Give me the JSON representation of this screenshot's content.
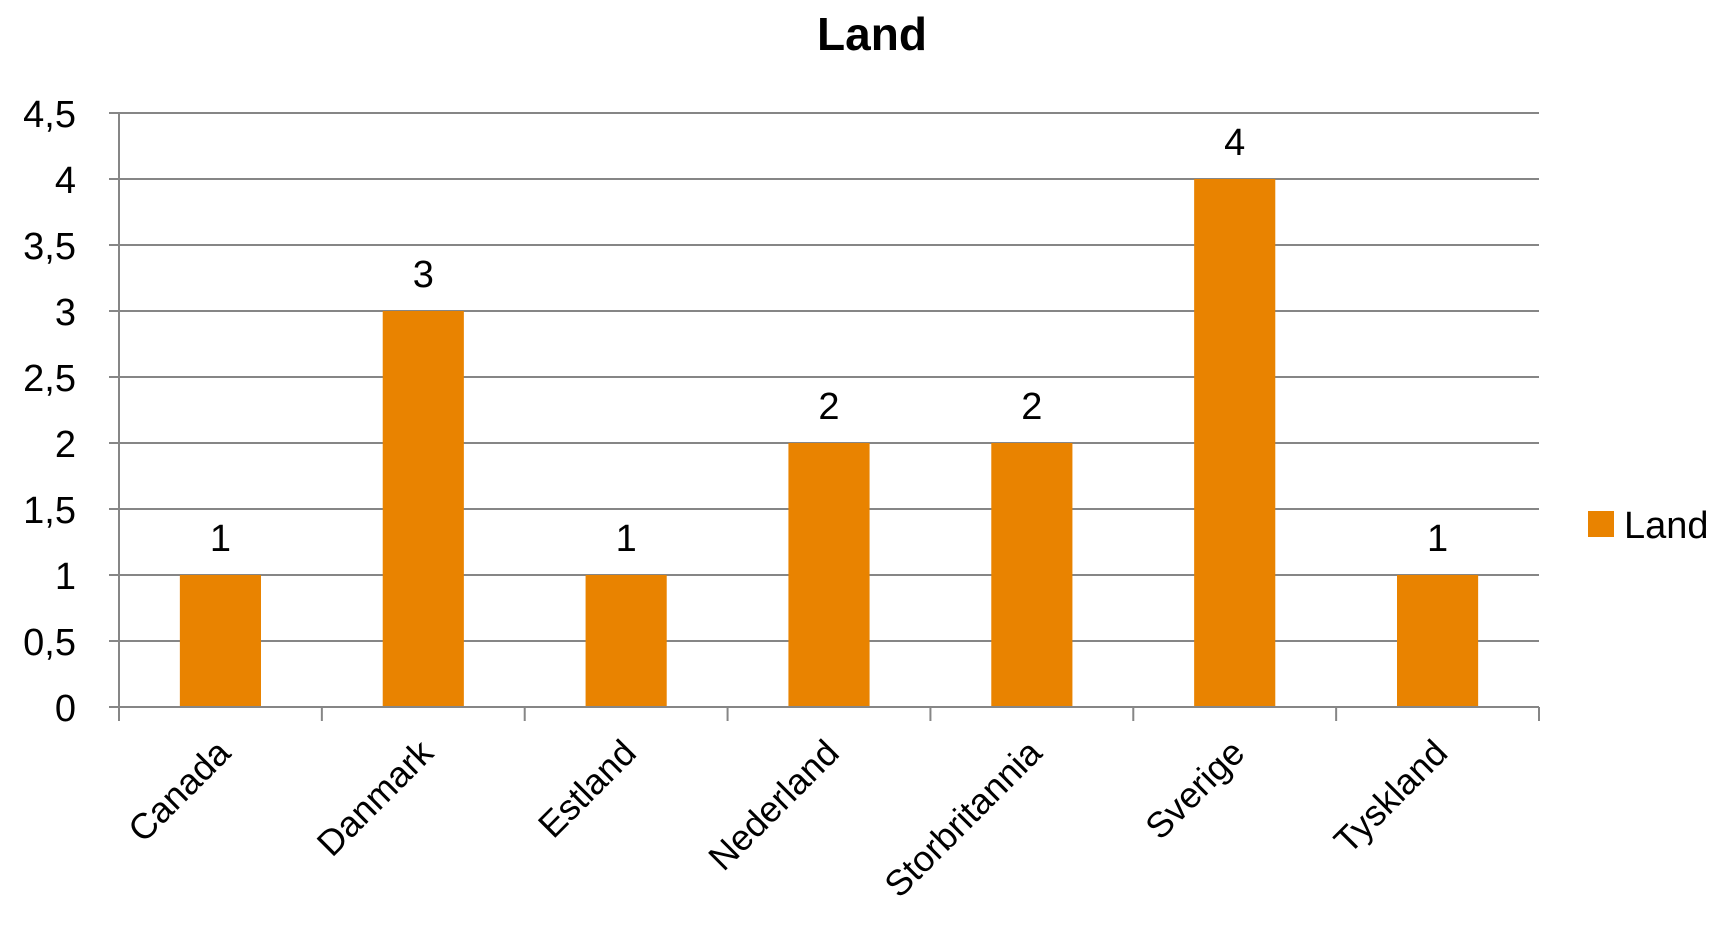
{
  "chart_data": {
    "type": "bar",
    "title": "Land",
    "xlabel": "",
    "ylabel": "",
    "categories": [
      "Canada",
      "Danmark",
      "Estland",
      "Nederland",
      "Storbritannia",
      "Sverige",
      "Tyskland"
    ],
    "series": [
      {
        "name": "Land",
        "values": [
          1,
          3,
          1,
          2,
          2,
          4,
          1
        ],
        "color": "#E98300"
      }
    ],
    "data_labels": [
      "1",
      "3",
      "1",
      "2",
      "2",
      "4",
      "1"
    ],
    "ylim": [
      0,
      4.5
    ],
    "yticks": [
      0,
      0.5,
      1,
      1.5,
      2,
      2.5,
      3,
      3.5,
      4,
      4.5
    ],
    "ytick_labels": [
      "0",
      "0,5",
      "1",
      "1,5",
      "2",
      "2,5",
      "3",
      "3,5",
      "4",
      "4,5"
    ],
    "grid": true,
    "legend": {
      "position": "right",
      "entries": [
        "Land"
      ]
    },
    "colors": {
      "bar": "#E98300",
      "grid": "#868686",
      "axis": "#868686"
    }
  }
}
